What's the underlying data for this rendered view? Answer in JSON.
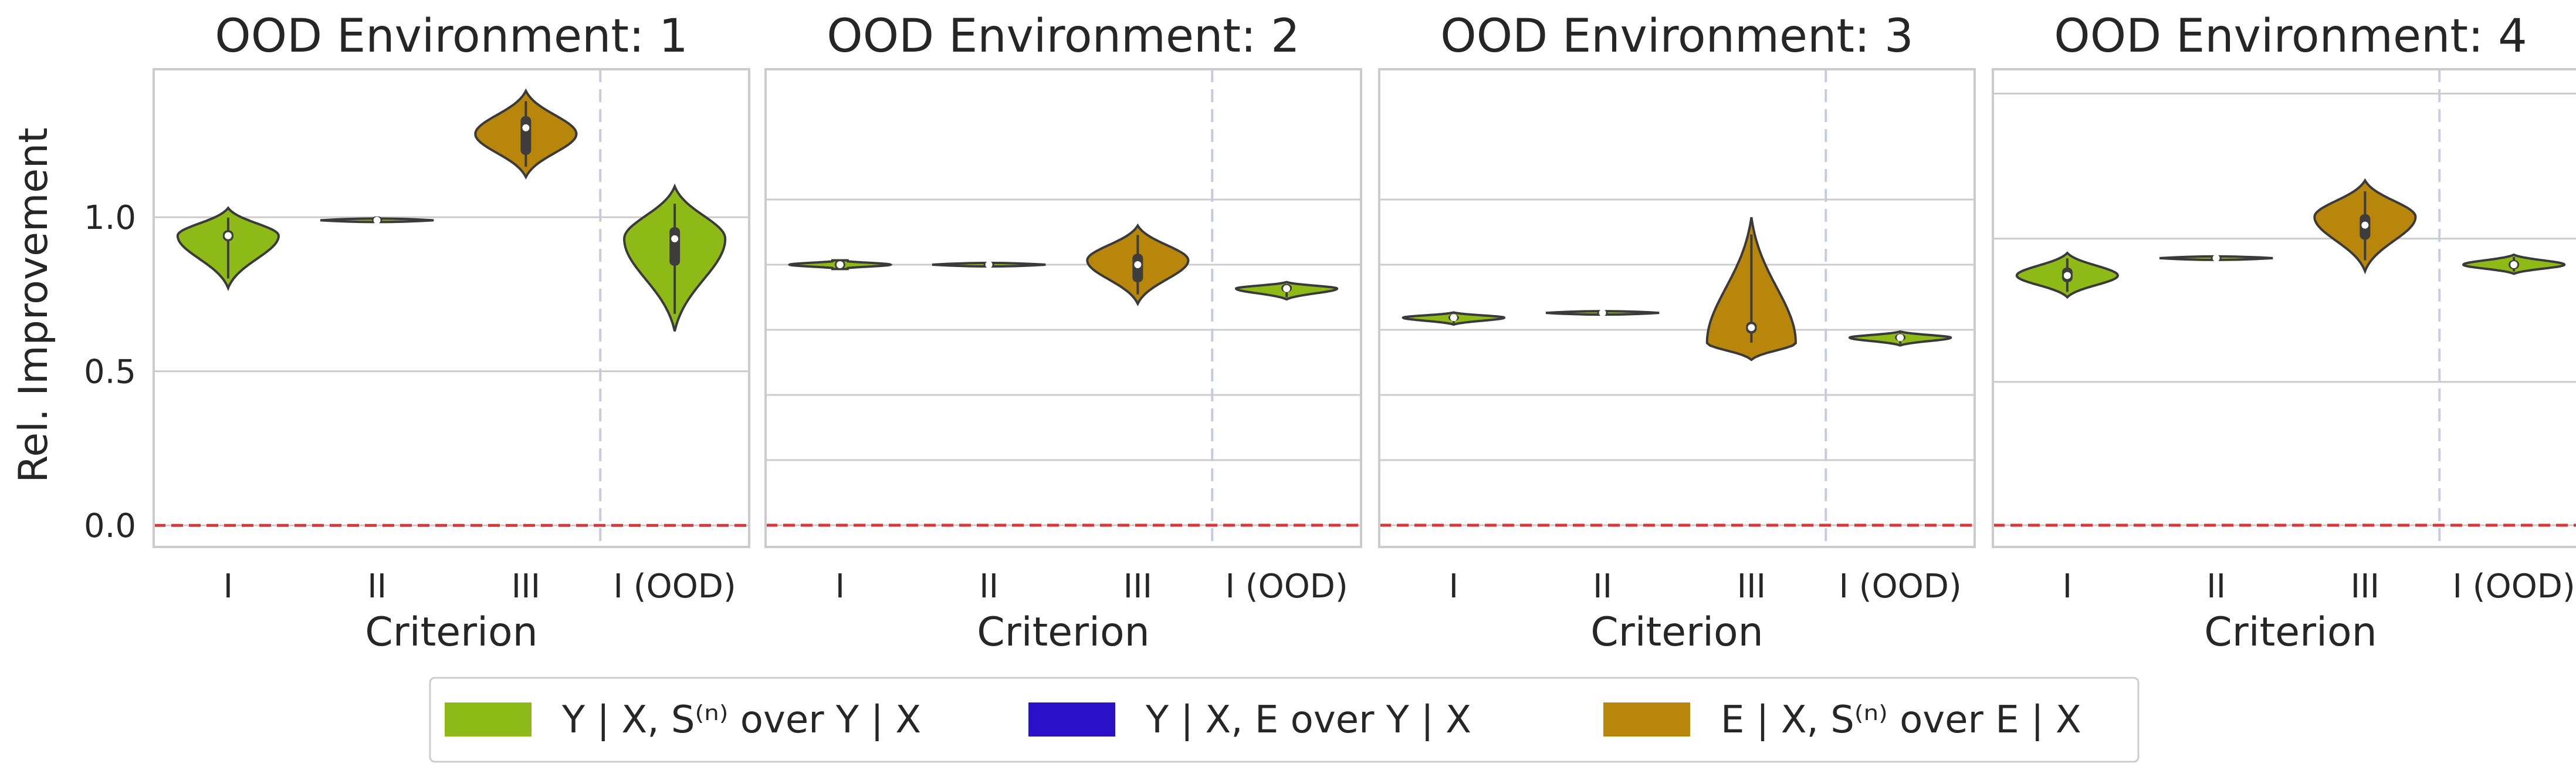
{
  "ylabel": "Rel. Improvement",
  "xlabel": "Criterion",
  "colors": {
    "green": "#8dba17",
    "blue": "#2b12c9",
    "gold": "#b8860b",
    "zero_line": "#d9383a",
    "ood_line": "#c8cbe0",
    "grid": "#cccccc",
    "spine": "#cccccc",
    "violin_edge": "#3a3a3a",
    "box": "#3d3d3d"
  },
  "legend": [
    {
      "label": "Y | X, S⁽ⁿ⁾  over Y | X",
      "color": "#8dba17"
    },
    {
      "label": "Y | X, E over Y | X",
      "color": "#2b12c9"
    },
    {
      "label": "E | X, S⁽ⁿ⁾ over E | X",
      "color": "#b8860b"
    }
  ],
  "chart_data": [
    {
      "type": "violin",
      "title": "OOD Environment: 1",
      "categories": [
        "I",
        "II",
        "III",
        "I (OOD)"
      ],
      "ylim": [
        -0.07,
        1.48
      ],
      "yticks": [
        0.0,
        0.5,
        1.0
      ],
      "ytick_labels": [
        "0.0",
        "0.5",
        "1.0"
      ],
      "show_ytick_labels": true,
      "reference_line": 0.0,
      "violins": [
        {
          "category": "I",
          "color": "green",
          "min": 0.77,
          "q1": 0.93,
          "median": 0.94,
          "q3": 0.95,
          "max": 1.03,
          "mode": 0.94,
          "width": 0.82
        },
        {
          "category": "II",
          "color": "green",
          "min": 0.985,
          "q1": 0.99,
          "median": 0.99,
          "q3": 0.995,
          "max": 1.0,
          "mode": 0.99,
          "width": 0.92
        },
        {
          "category": "III",
          "color": "gold",
          "min": 1.13,
          "q1": 1.21,
          "median": 1.29,
          "q3": 1.32,
          "max": 1.41,
          "mode": 1.27,
          "width": 0.82
        },
        {
          "category": "I (OOD)",
          "color": "green",
          "min": 0.63,
          "q1": 0.85,
          "median": 0.93,
          "q3": 0.96,
          "max": 1.1,
          "mode": 0.93,
          "width": 0.82
        }
      ]
    },
    {
      "type": "violin",
      "title": "OOD Environment: 2",
      "categories": [
        "I",
        "II",
        "III",
        "I (OOD)"
      ],
      "ylim": [
        0.97,
        1.08
      ],
      "yticks": [
        0.975,
        0.99,
        1.005,
        1.02,
        1.035,
        1.05
      ],
      "ytick_labels": [
        "",
        "",
        "",
        "",
        "",
        ""
      ],
      "show_ytick_labels": false,
      "reference_line": 0.975,
      "violins": [
        {
          "category": "I",
          "color": "green",
          "min": 1.034,
          "q1": 1.0345,
          "median": 1.035,
          "q3": 1.0355,
          "max": 1.036,
          "mode": 1.035,
          "width": 0.82
        },
        {
          "category": "II",
          "color": "green",
          "min": 1.0349,
          "q1": 1.035,
          "median": 1.035,
          "q3": 1.035,
          "max": 1.0351,
          "mode": 1.035,
          "width": 0.92
        },
        {
          "category": "III",
          "color": "gold",
          "min": 1.026,
          "q1": 1.0315,
          "median": 1.035,
          "q3": 1.037,
          "max": 1.044,
          "mode": 1.036,
          "width": 0.82
        },
        {
          "category": "I (OOD)",
          "color": "green",
          "min": 1.027,
          "q1": 1.0292,
          "median": 1.0295,
          "q3": 1.03,
          "max": 1.031,
          "mode": 1.0295,
          "width": 0.82
        }
      ]
    },
    {
      "type": "violin",
      "title": "OOD Environment: 3",
      "categories": [
        "I",
        "II",
        "III",
        "I (OOD)"
      ],
      "ylim": [
        0.97,
        1.08
      ],
      "yticks": [
        0.975,
        0.99,
        1.005,
        1.02,
        1.035,
        1.05
      ],
      "ytick_labels": [
        "",
        "",
        "",
        "",
        "",
        ""
      ],
      "show_ytick_labels": false,
      "reference_line": 0.975,
      "violins": [
        {
          "category": "I",
          "color": "green",
          "min": 1.0212,
          "q1": 1.0226,
          "median": 1.0228,
          "q3": 1.023,
          "max": 1.024,
          "mode": 1.0228,
          "width": 0.82
        },
        {
          "category": "II",
          "color": "green",
          "min": 1.0234,
          "q1": 1.0238,
          "median": 1.0239,
          "q3": 1.024,
          "max": 1.0245,
          "mode": 1.0239,
          "width": 0.92
        },
        {
          "category": "III",
          "color": "gold",
          "min": 1.0131,
          "q1": 1.0197,
          "median": 1.0205,
          "q3": 1.0213,
          "max": 1.0459,
          "mode": 1.017,
          "width": 0.72
        },
        {
          "category": "I (OOD)",
          "color": "green",
          "min": 1.0164,
          "q1": 1.018,
          "median": 1.0182,
          "q3": 1.0185,
          "max": 1.0196,
          "mode": 1.0182,
          "width": 0.82
        }
      ]
    },
    {
      "type": "violin",
      "title": "OOD Environment: 4",
      "categories": [
        "I",
        "II",
        "III",
        "I (OOD)"
      ],
      "ylim": [
        0.97,
        1.08
      ],
      "yticks": [
        0.975,
        1.008,
        1.041,
        1.0744
      ],
      "ytick_labels": [
        "",
        "",
        "",
        ""
      ],
      "show_ytick_labels": false,
      "reference_line": 0.975,
      "violins": [
        {
          "category": "I",
          "color": "green",
          "min": 1.0275,
          "q1": 1.0315,
          "median": 1.0325,
          "q3": 1.0338,
          "max": 1.0377,
          "mode": 1.0325,
          "width": 0.82
        },
        {
          "category": "II",
          "color": "green",
          "min": 1.0359,
          "q1": 1.0364,
          "median": 1.0365,
          "q3": 1.0366,
          "max": 1.0368,
          "mode": 1.0365,
          "width": 0.92
        },
        {
          "category": "III",
          "color": "gold",
          "min": 1.0335,
          "q1": 1.0413,
          "median": 1.0441,
          "q3": 1.0461,
          "max": 1.0544,
          "mode": 1.046,
          "width": 0.82
        },
        {
          "category": "I (OOD)",
          "color": "green",
          "min": 1.0329,
          "q1": 1.0345,
          "median": 1.035,
          "q3": 1.0355,
          "max": 1.0373,
          "mode": 1.035,
          "width": 0.82
        }
      ]
    }
  ]
}
